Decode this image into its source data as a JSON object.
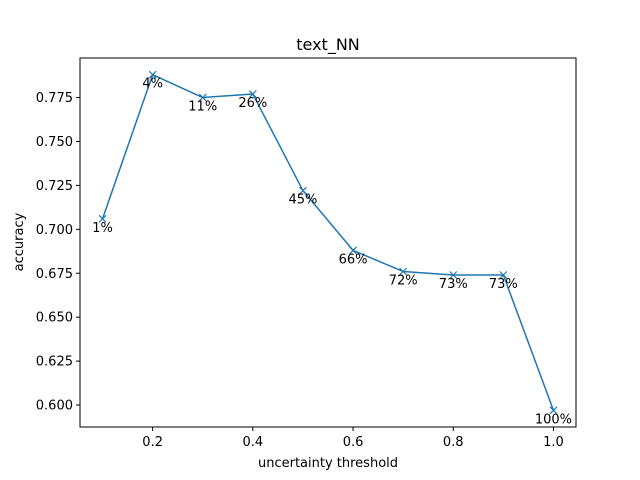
{
  "chart_data": {
    "type": "line",
    "title": "text_NN",
    "xlabel": "uncertainty threshold",
    "ylabel": "accuracy",
    "xlim": [
      0.055,
      1.045
    ],
    "ylim": [
      0.5875,
      0.7975
    ],
    "xticks": [
      0.2,
      0.4,
      0.6,
      0.8,
      1.0
    ],
    "xtick_labels": [
      "0.2",
      "0.4",
      "0.6",
      "0.8",
      "1.0"
    ],
    "yticks": [
      0.6,
      0.625,
      0.65,
      0.675,
      0.7,
      0.725,
      0.75,
      0.775
    ],
    "ytick_labels": [
      "0.600",
      "0.625",
      "0.650",
      "0.675",
      "0.700",
      "0.725",
      "0.750",
      "0.775"
    ],
    "grid": false,
    "marker": "x",
    "series": [
      {
        "color": "#1f77b4",
        "x": [
          0.1,
          0.2,
          0.3,
          0.4,
          0.5,
          0.6,
          0.7,
          0.8,
          0.9,
          1.0
        ],
        "y": [
          0.706,
          0.788,
          0.775,
          0.777,
          0.722,
          0.688,
          0.676,
          0.674,
          0.674,
          0.597
        ],
        "labels": [
          "1%",
          "4%",
          "11%",
          "26%",
          "45%",
          "66%",
          "72%",
          "73%",
          "73%",
          "100%"
        ]
      }
    ]
  }
}
